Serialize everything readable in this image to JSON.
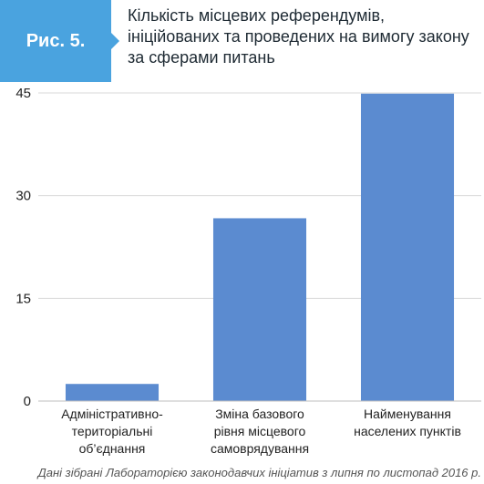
{
  "figure": {
    "label": "Рис. 5.",
    "title": "Кількість місцевих референдумів,\nініційованих та проведених на вимогу закону\nза сферами питань"
  },
  "footnote": "Дані зібрані Лабораторією законодавчих ініціатив з липня по листопад 2016 р.",
  "colors": {
    "bar": "#5b8bd0",
    "grid": "#d9d9d9",
    "badge": "#4aa3df"
  },
  "chart_data": {
    "type": "bar",
    "title": "Кількість місцевих референдумів, ініційованих та проведених на вимогу закону за сферами питань",
    "categories": [
      "Адміністративно-територіальні об’єднання",
      "Зміна базового рівня місцевого самоврядування",
      "Найменування населених пунктів"
    ],
    "category_lines": [
      [
        "Адміністративно-",
        "територіальні",
        "об’єднання"
      ],
      [
        "Зміна базового",
        "рівня місцевого",
        "самоврядування"
      ],
      [
        "Найменування",
        "населених пунктів"
      ]
    ],
    "values": [
      2.5,
      26.7,
      44.9
    ],
    "ylim": [
      0,
      45
    ],
    "yticks": [
      0,
      15,
      30,
      45
    ],
    "grid": true,
    "xlabel": "",
    "ylabel": ""
  }
}
